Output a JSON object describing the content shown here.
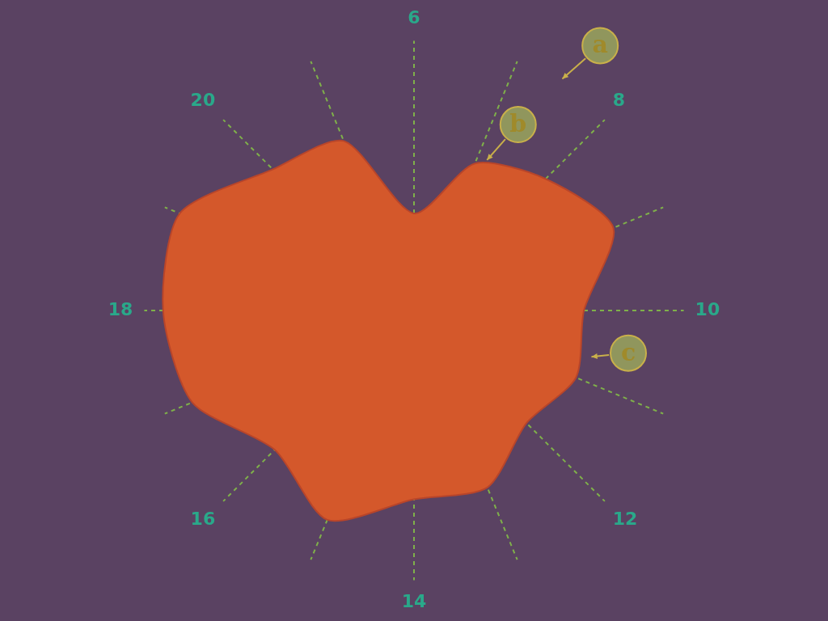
{
  "chart_data": {
    "type": "radar",
    "categories": [
      "6",
      null,
      "8",
      null,
      "10",
      null,
      "12",
      null,
      "14",
      null,
      "16",
      null,
      "18",
      null,
      "20",
      null
    ],
    "values": [
      36,
      59,
      69,
      80,
      63,
      65,
      59,
      71,
      70,
      84,
      73,
      89,
      93,
      94,
      74,
      68
    ],
    "color": "#d4582b",
    "ylim": [
      0,
      100
    ],
    "yticks": [
      100
    ],
    "grid": true,
    "tick_labels": "x",
    "annotations": [
      "a",
      "b",
      "c"
    ]
  }
}
